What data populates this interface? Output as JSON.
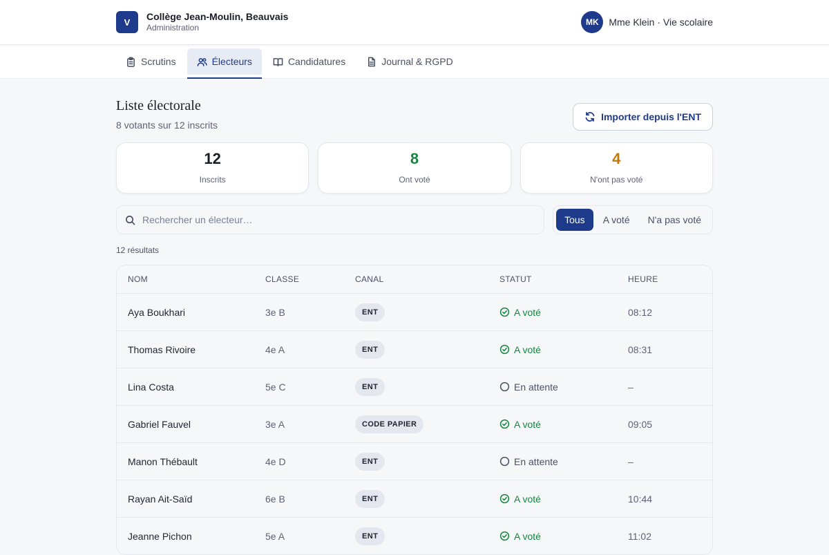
{
  "header": {
    "logo_letter": "V",
    "school_name": "Collège Jean-Moulin, Beauvais",
    "school_sub": "Administration",
    "avatar_initials": "MK",
    "user_name": "Mme Klein · Vie scolaire"
  },
  "tabs": [
    {
      "label": "Scrutins",
      "icon": "clipboard-icon",
      "active": false
    },
    {
      "label": "Électeurs",
      "icon": "users-icon",
      "active": true
    },
    {
      "label": "Candidatures",
      "icon": "book-icon",
      "active": false
    },
    {
      "label": "Journal & RGPD",
      "icon": "document-icon",
      "active": false
    }
  ],
  "page": {
    "title": "Liste électorale",
    "subtitle": "8 votants sur 12 inscrits",
    "import_label": "Importer depuis l'ENT"
  },
  "stats": [
    {
      "value": "12",
      "label": "Inscrits",
      "color": "#1a1d26"
    },
    {
      "value": "8",
      "label": "Ont voté",
      "color": "#16853f"
    },
    {
      "value": "4",
      "label": "N'ont pas voté",
      "color": "#c27803"
    }
  ],
  "search": {
    "placeholder": "Rechercher un électeur…",
    "value": ""
  },
  "filters": [
    {
      "label": "Tous",
      "active": true
    },
    {
      "label": "A voté",
      "active": false
    },
    {
      "label": "N'a pas voté",
      "active": false
    }
  ],
  "result_count": "12 résultats",
  "table": {
    "headers": [
      "NOM",
      "CLASSE",
      "CANAL",
      "STATUT",
      "HEURE"
    ],
    "rows": [
      {
        "name": "Aya Boukhari",
        "classe": "3e B",
        "canal": "ENT",
        "statut": "A voté",
        "voted": true,
        "heure": "08:12"
      },
      {
        "name": "Thomas Rivoire",
        "classe": "4e A",
        "canal": "ENT",
        "statut": "A voté",
        "voted": true,
        "heure": "08:31"
      },
      {
        "name": "Lina Costa",
        "classe": "5e C",
        "canal": "ENT",
        "statut": "En attente",
        "voted": false,
        "heure": "–"
      },
      {
        "name": "Gabriel Fauvel",
        "classe": "3e A",
        "canal": "CODE PAPIER",
        "statut": "A voté",
        "voted": true,
        "heure": "09:05"
      },
      {
        "name": "Manon Thébault",
        "classe": "4e D",
        "canal": "ENT",
        "statut": "En attente",
        "voted": false,
        "heure": "–"
      },
      {
        "name": "Rayan Ait-Saïd",
        "classe": "6e B",
        "canal": "ENT",
        "statut": "A voté",
        "voted": true,
        "heure": "10:44"
      },
      {
        "name": "Jeanne Pichon",
        "classe": "5e A",
        "canal": "ENT",
        "statut": "A voté",
        "voted": true,
        "heure": "11:02"
      }
    ]
  }
}
